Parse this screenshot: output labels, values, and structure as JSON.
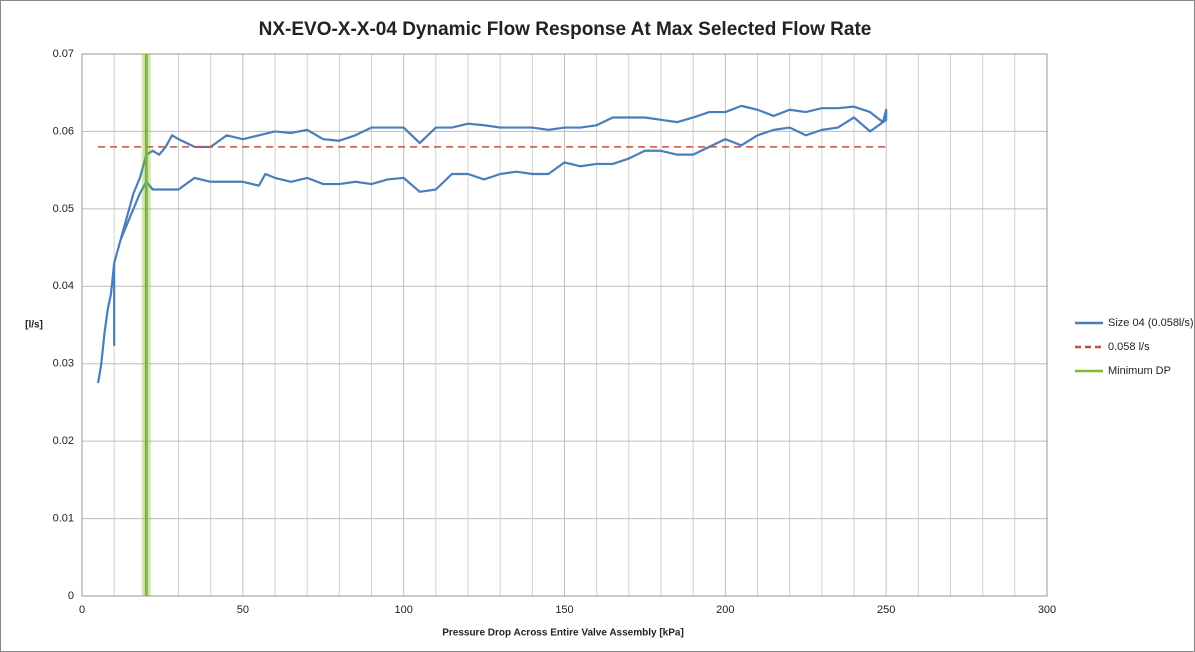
{
  "chart_data": {
    "type": "line",
    "title": "NX-EVO-X-X-04 Dynamic Flow Response At Max Selected Flow Rate",
    "x_label": "Pressure Drop Across Entire Valve Assembly [kPa]",
    "y_label": "[l/s]",
    "xlim": [
      0,
      300
    ],
    "xticks": [
      0,
      50,
      100,
      150,
      200,
      250,
      300
    ],
    "ylim": [
      0,
      0.07
    ],
    "yticks": [
      0,
      0.01,
      0.02,
      0.03,
      0.04,
      0.05,
      0.06,
      0.07
    ],
    "grid": true,
    "legend": "right",
    "series": [
      {
        "name": "Size 04 (0.058l/s)",
        "color": "#4a7ebb",
        "style": "solid",
        "x": [
          5,
          6,
          7,
          8,
          9,
          10,
          12,
          14,
          16,
          18,
          20,
          22,
          24,
          26,
          28,
          30,
          35,
          40,
          45,
          50,
          55,
          60,
          65,
          70,
          75,
          80,
          85,
          90,
          95,
          100,
          105,
          110,
          115,
          120,
          125,
          130,
          135,
          140,
          145,
          150,
          155,
          160,
          165,
          170,
          175,
          180,
          185,
          190,
          195,
          200,
          205,
          210,
          215,
          220,
          225,
          230,
          235,
          240,
          245,
          249,
          250,
          250,
          245,
          240,
          235,
          230,
          225,
          220,
          215,
          210,
          205,
          200,
          195,
          190,
          185,
          180,
          175,
          170,
          165,
          160,
          155,
          150,
          145,
          140,
          135,
          130,
          125,
          120,
          115,
          110,
          105,
          100,
          95,
          90,
          85,
          80,
          75,
          70,
          65,
          60,
          57,
          55,
          50,
          45,
          40,
          35,
          30,
          25,
          22,
          20,
          18,
          15,
          12,
          10,
          10
        ],
        "values": [
          0.0275,
          0.03,
          0.034,
          0.037,
          0.039,
          0.043,
          0.046,
          0.049,
          0.052,
          0.054,
          0.057,
          0.0575,
          0.057,
          0.058,
          0.0595,
          0.059,
          0.058,
          0.058,
          0.0595,
          0.059,
          0.0595,
          0.06,
          0.0598,
          0.0602,
          0.059,
          0.0588,
          0.0595,
          0.0605,
          0.0605,
          0.0605,
          0.0585,
          0.0605,
          0.0605,
          0.061,
          0.0608,
          0.0605,
          0.0605,
          0.0605,
          0.0602,
          0.0605,
          0.0605,
          0.0608,
          0.0618,
          0.0618,
          0.0618,
          0.0615,
          0.0612,
          0.0618,
          0.0625,
          0.0625,
          0.0633,
          0.0628,
          0.062,
          0.0628,
          0.0625,
          0.063,
          0.063,
          0.0632,
          0.0625,
          0.0612,
          0.0628,
          0.0615,
          0.06,
          0.0618,
          0.0605,
          0.0602,
          0.0595,
          0.0605,
          0.0602,
          0.0595,
          0.0582,
          0.059,
          0.058,
          0.057,
          0.057,
          0.0575,
          0.0575,
          0.0565,
          0.0558,
          0.0558,
          0.0555,
          0.056,
          0.0545,
          0.0545,
          0.0548,
          0.0545,
          0.0538,
          0.0545,
          0.0545,
          0.0525,
          0.0522,
          0.054,
          0.0538,
          0.0532,
          0.0535,
          0.0532,
          0.0532,
          0.054,
          0.0535,
          0.054,
          0.0545,
          0.053,
          0.0535,
          0.0535,
          0.0535,
          0.054,
          0.0525,
          0.0525,
          0.0525,
          0.0535,
          0.052,
          0.049,
          0.046,
          0.043,
          0.0323
        ]
      },
      {
        "name": "0.058 l/s",
        "color": "#c0504d",
        "style": "dashed",
        "x": [
          5,
          250
        ],
        "values": [
          0.058,
          0.058
        ]
      },
      {
        "name": "Minimum DP",
        "color": "#7fb832",
        "style": "vline",
        "x": [
          20
        ]
      }
    ]
  }
}
